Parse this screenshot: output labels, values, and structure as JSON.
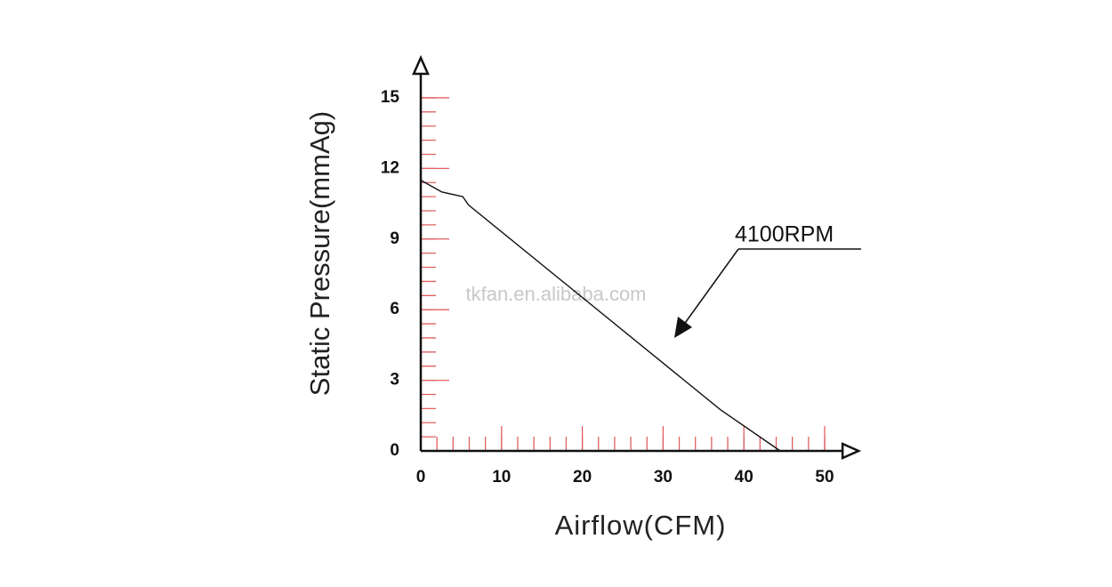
{
  "chart_data": {
    "type": "line",
    "x_label": "Airflow(CFM)",
    "y_label": "Static Pressure(mmAg)",
    "watermark": "tkfan.en.alibaba.com",
    "series": [
      {
        "name": "4100RPM",
        "color": "#111111",
        "x": [
          0,
          2.6,
          5.2,
          5.9,
          37.1,
          44.5
        ],
        "values": [
          11.5,
          11.0,
          10.8,
          10.45,
          1.75,
          0
        ]
      }
    ],
    "xlim": [
      0,
      54.2
    ],
    "ylim": [
      0,
      16.7
    ],
    "xticks": [
      0,
      10,
      20,
      30,
      40,
      50
    ],
    "yticks": [
      0,
      3,
      6,
      9,
      12,
      15
    ],
    "xminorticks": [
      0,
      2,
      4,
      6,
      8,
      10,
      12,
      14,
      16,
      18,
      20,
      22,
      24,
      26,
      28,
      30,
      32,
      34,
      36,
      38,
      40,
      42,
      44,
      46,
      48,
      50
    ],
    "yminorticks": [
      0,
      0.6,
      1.2,
      1.8,
      2.4,
      3,
      3.6,
      4.2,
      4.8,
      5.4,
      6,
      6.6,
      7.2,
      7.8,
      8.4,
      9,
      9.6,
      10.2,
      10.8,
      11.4,
      12,
      12.6,
      13.2,
      13.8,
      14.4,
      15
    ],
    "tick_color": "#e06060"
  }
}
